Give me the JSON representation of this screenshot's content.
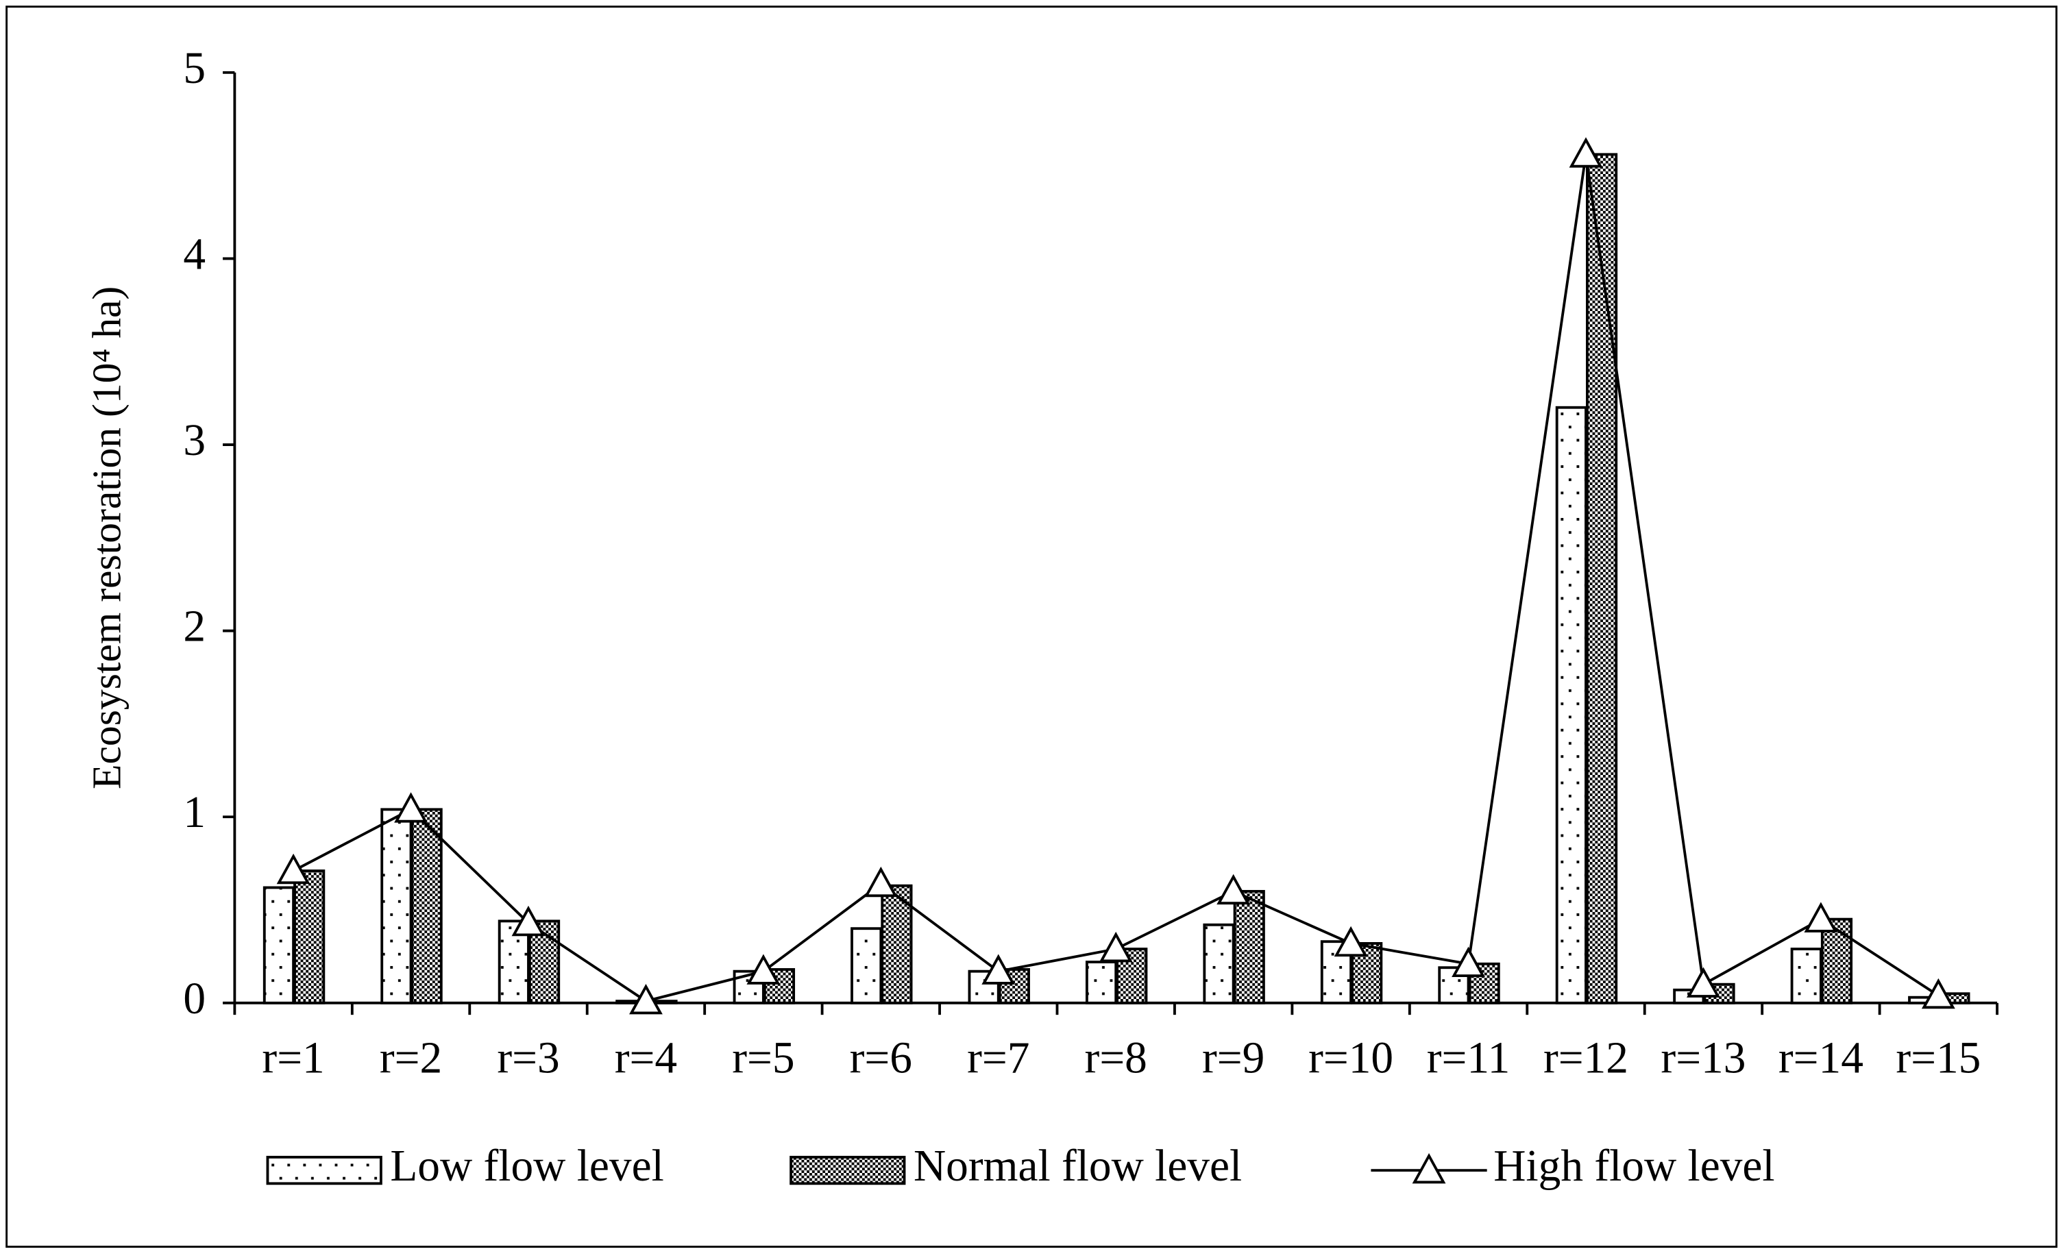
{
  "chart_data": {
    "type": "bar",
    "y_label": "Ecosystem restoration (10⁴ ha)",
    "categories": [
      "r=1",
      "r=2",
      "r=3",
      "r=4",
      "r=5",
      "r=6",
      "r=7",
      "r=8",
      "r=9",
      "r=10",
      "r=11",
      "r=12",
      "r=13",
      "r=14",
      "r=15"
    ],
    "series": [
      {
        "name": "Low flow level",
        "type": "bar",
        "pattern": "dots",
        "color": "#000000",
        "values": [
          0.62,
          1.04,
          0.44,
          0.01,
          0.17,
          0.4,
          0.17,
          0.22,
          0.42,
          0.33,
          0.19,
          3.2,
          0.07,
          0.29,
          0.03
        ]
      },
      {
        "name": "Normal flow level",
        "type": "bar",
        "pattern": "checker",
        "color": "#000000",
        "values": [
          0.71,
          1.04,
          0.44,
          0.01,
          0.18,
          0.63,
          0.18,
          0.29,
          0.6,
          0.32,
          0.21,
          4.56,
          0.1,
          0.45,
          0.05
        ]
      },
      {
        "name": "High flow level",
        "type": "line",
        "marker": "triangle",
        "color": "#000000",
        "values": [
          0.71,
          1.04,
          0.43,
          0.01,
          0.17,
          0.64,
          0.17,
          0.29,
          0.6,
          0.32,
          0.21,
          4.56,
          0.1,
          0.45,
          0.04
        ]
      }
    ],
    "ylim": [
      0,
      5
    ],
    "yticks": [
      0,
      1,
      2,
      3,
      4,
      5
    ],
    "grid": false,
    "legend": "bottom"
  }
}
